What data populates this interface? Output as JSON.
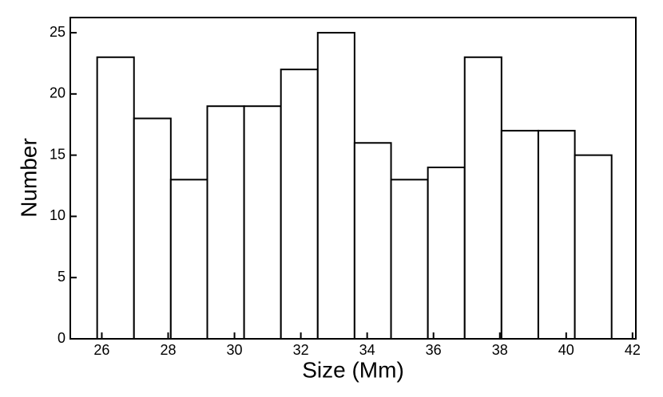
{
  "chart_data": {
    "type": "histogram",
    "x_label": "Size (Mm)",
    "y_label": "Number",
    "bins": [
      25.86,
      26.97,
      28.08,
      29.18,
      30.29,
      31.4,
      32.51,
      33.62,
      34.72,
      35.83,
      36.94,
      38.05,
      39.16,
      40.26,
      41.37
    ],
    "values": [
      23,
      18,
      13,
      19,
      19,
      22,
      25,
      16,
      13,
      14,
      23,
      17,
      17,
      15
    ],
    "color": "#ffffff",
    "edge_color": "#000000",
    "xlim": [
      25.05,
      42.1
    ],
    "xticks": [
      26,
      28,
      30,
      32,
      34,
      36,
      38,
      40,
      42
    ],
    "ylim": [
      0,
      26.24
    ],
    "yticks": [
      0,
      5,
      10,
      15,
      20,
      25
    ],
    "grid": false
  }
}
